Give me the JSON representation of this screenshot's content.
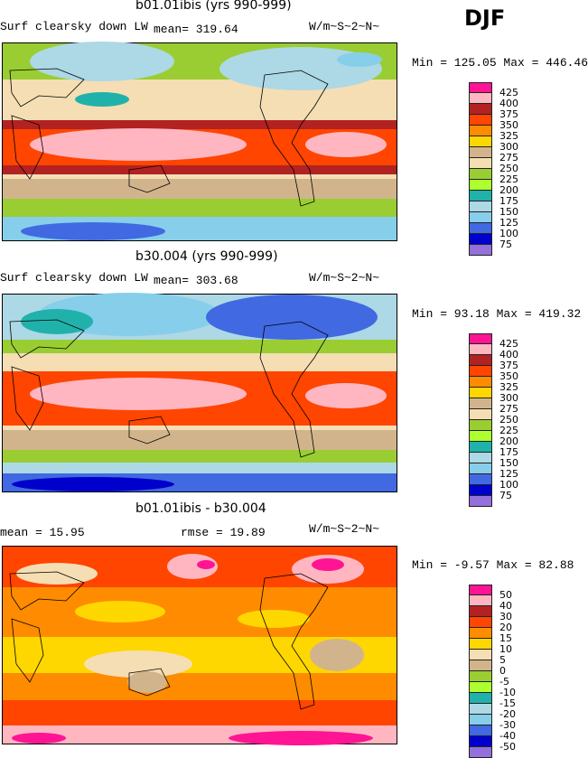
{
  "season": "DJF",
  "units": "W/m~S~2~N~",
  "panels": [
    {
      "title": "b01.01ibis (yrs 990-999)",
      "variable": "Surf clearsky down LW",
      "stat1": "mean= 319.64",
      "stat2": "",
      "minmax": "Min = 125.05 Max = 446.46"
    },
    {
      "title": "b30.004 (yrs 990-999)",
      "variable": "Surf clearsky down LW",
      "stat1": "mean= 303.68",
      "stat2": "",
      "minmax": "Min =  93.18 Max = 419.32"
    },
    {
      "title": "b01.01ibis - b30.004",
      "variable": "",
      "stat1": "mean =   15.95",
      "stat2": "rmse =   19.89",
      "minmax": "Min =  -9.57 Max =  82.88"
    }
  ],
  "legend_abs": {
    "labels": [
      "425",
      "400",
      "375",
      "350",
      "325",
      "300",
      "275",
      "250",
      "225",
      "200",
      "175",
      "150",
      "125",
      "100",
      "75"
    ],
    "colors": [
      "#ff1493",
      "#ffb6c1",
      "#b22222",
      "#ff4500",
      "#ff8c00",
      "#ffd700",
      "#d2b48c",
      "#f5deb3",
      "#9acd32",
      "#adff2f",
      "#20b2aa",
      "#add8e6",
      "#87ceeb",
      "#4169e1",
      "#0000cd",
      "#9370db"
    ]
  },
  "legend_diff": {
    "labels": [
      "50",
      "40",
      "30",
      "20",
      "15",
      "10",
      "5",
      "0",
      "-5",
      "-10",
      "-15",
      "-20",
      "-30",
      "-40",
      "-50"
    ],
    "colors": [
      "#ff1493",
      "#ffb6c1",
      "#b22222",
      "#ff4500",
      "#ff8c00",
      "#ffd700",
      "#f5deb3",
      "#d2b48c",
      "#9acd32",
      "#adff2f",
      "#20b2aa",
      "#add8e6",
      "#87ceeb",
      "#4169e1",
      "#0000cd",
      "#9370db"
    ]
  }
}
